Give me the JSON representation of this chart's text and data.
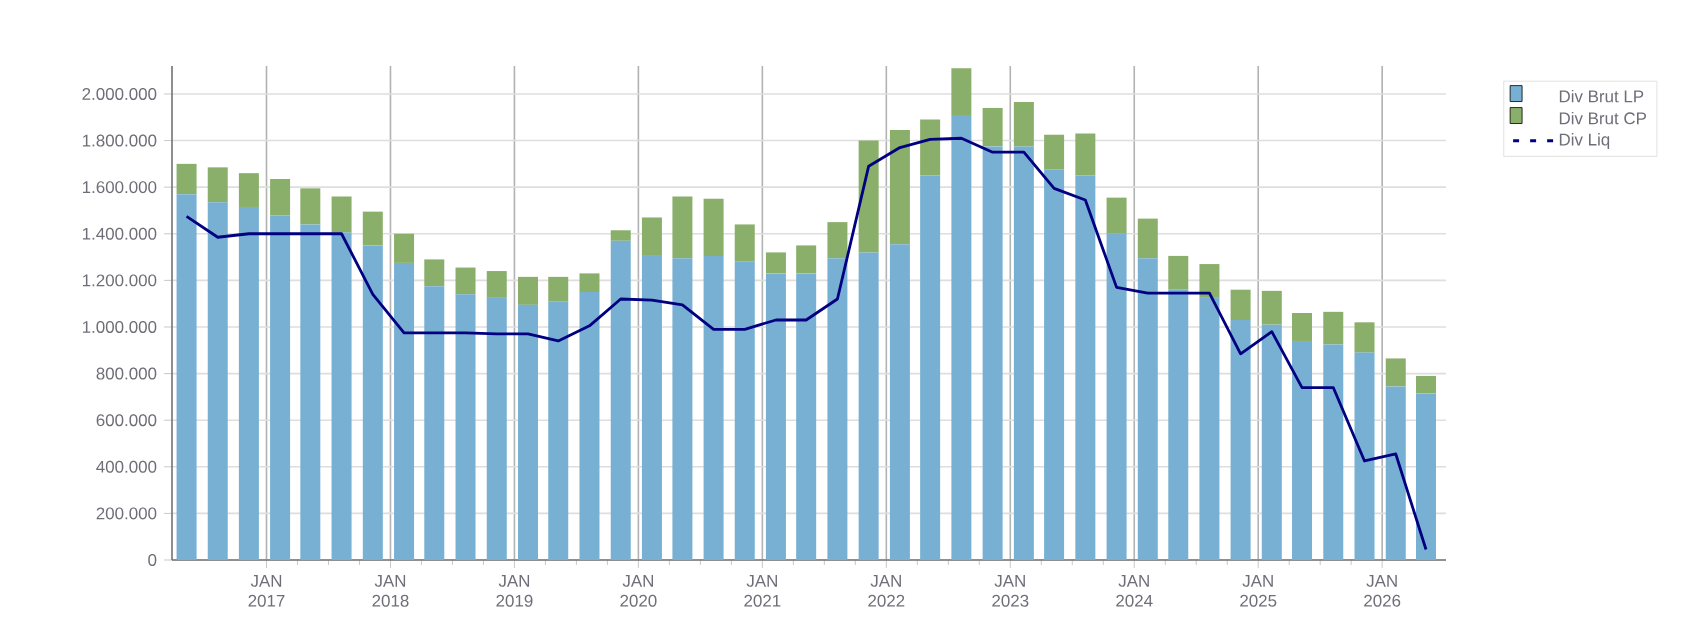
{
  "chart_data": {
    "type": "bar",
    "stacked": true,
    "x": [
      "2016-05-10",
      "2016-08-10",
      "2016-11-10",
      "2017-02-10",
      "2017-05-10",
      "2017-08-10",
      "2017-11-10",
      "2018-02-10",
      "2018-05-10",
      "2018-08-10",
      "2018-11-10",
      "2019-02-10",
      "2019-05-10",
      "2019-08-10",
      "2019-11-10",
      "2020-02-10",
      "2020-05-10",
      "2020-08-10",
      "2020-11-10",
      "2021-02-10",
      "2021-05-10",
      "2021-08-10",
      "2021-11-10",
      "2022-02-10",
      "2022-05-10",
      "2022-08-10",
      "2022-11-10",
      "2023-02-10",
      "2023-05-10",
      "2023-08-10",
      "2023-11-10",
      "2024-02-10",
      "2024-05-10",
      "2024-08-10",
      "2024-11-10",
      "2025-02-10",
      "2025-05-10",
      "2025-08-10",
      "2025-11-10",
      "2026-02-10",
      "2026-05-10"
    ],
    "series": [
      {
        "name": "Div Brut LP",
        "color": "#77b0d3",
        "values": [
          1570000,
          1535000,
          1515000,
          1480000,
          1440000,
          1405000,
          1350000,
          1275000,
          1175000,
          1140000,
          1125000,
          1095000,
          1110000,
          1150000,
          1370000,
          1305000,
          1295000,
          1305000,
          1280000,
          1230000,
          1230000,
          1295000,
          1320000,
          1355000,
          1650000,
          1910000,
          1775000,
          1775000,
          1675000,
          1650000,
          1400000,
          1295000,
          1160000,
          1125000,
          1030000,
          1010000,
          940000,
          925000,
          890000,
          745000,
          715000
        ]
      },
      {
        "name": "Div Brut CP",
        "color": "#8aaf6a",
        "values": [
          130000,
          150000,
          145000,
          155000,
          155000,
          155000,
          145000,
          125000,
          115000,
          115000,
          115000,
          120000,
          105000,
          80000,
          45000,
          165000,
          265000,
          245000,
          160000,
          90000,
          120000,
          155000,
          480000,
          490000,
          240000,
          200000,
          165000,
          190000,
          150000,
          180000,
          155000,
          170000,
          145000,
          145000,
          130000,
          145000,
          120000,
          140000,
          130000,
          120000,
          75000
        ]
      },
      {
        "name": "Div Liq",
        "type": "line",
        "color": "#000080",
        "values": [
          1475000,
          1385000,
          1400000,
          1400000,
          1400000,
          1400000,
          1140000,
          975000,
          975000,
          975000,
          970000,
          970000,
          940000,
          1005000,
          1120000,
          1115000,
          1095000,
          990000,
          990000,
          1030000,
          1030000,
          1120000,
          1690000,
          1770000,
          1805000,
          1810000,
          1750000,
          1750000,
          1595000,
          1545000,
          1170000,
          1145000,
          1145000,
          1145000,
          885000,
          980000,
          740000,
          740000,
          425000,
          455000,
          45000
        ]
      }
    ],
    "xlim": [
      "2016-03-28",
      "2026-07-08"
    ],
    "xticks": [
      {
        "value": "2017-01-01",
        "label": "JAN 2017"
      },
      {
        "value": "2018-01-01",
        "label": "JAN 2018"
      },
      {
        "value": "2019-01-01",
        "label": "JAN 2019"
      },
      {
        "value": "2020-01-01",
        "label": "JAN 2020"
      },
      {
        "value": "2021-01-01",
        "label": "JAN 2021"
      },
      {
        "value": "2022-01-01",
        "label": "JAN 2022"
      },
      {
        "value": "2023-01-01",
        "label": "JAN 2023"
      },
      {
        "value": "2024-01-01",
        "label": "JAN 2024"
      },
      {
        "value": "2025-01-01",
        "label": "JAN 2025"
      },
      {
        "value": "2026-01-01",
        "label": "JAN 2026"
      }
    ],
    "ylim": [
      0,
      2120000
    ],
    "yticks": [
      0,
      {
        "value": 200000,
        "label": "200.000"
      },
      {
        "value": 400000,
        "label": "400.000"
      },
      {
        "value": 600000,
        "label": "600.000"
      },
      {
        "value": 800000,
        "label": "800.000"
      },
      {
        "value": 1000000,
        "label": "1.000.000"
      },
      {
        "value": 1200000,
        "label": "1.200.000"
      },
      {
        "value": 1400000,
        "label": "1.400.000"
      },
      {
        "value": 1600000,
        "label": "1.600.000"
      },
      {
        "value": 1800000,
        "label": "1.800.000"
      },
      {
        "value": 2000000,
        "label": "2.000.000"
      }
    ],
    "grid": true,
    "legend": "top right",
    "marker": "none",
    "line_style": "solid"
  }
}
